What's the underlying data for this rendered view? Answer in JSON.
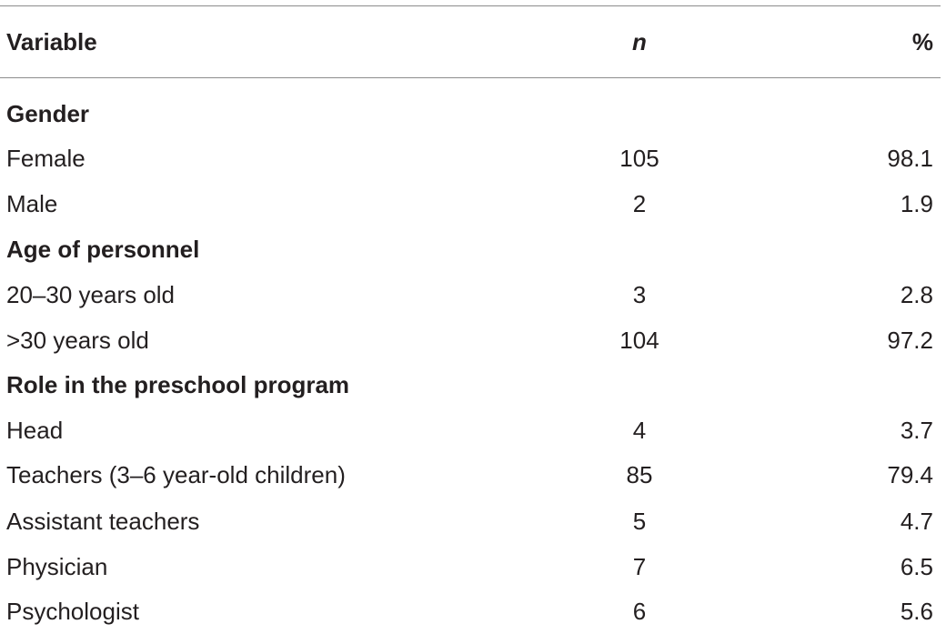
{
  "table": {
    "header": {
      "variable": "Variable",
      "n": "n",
      "percent": "%"
    },
    "sections": [
      {
        "title": "Gender",
        "rows": [
          {
            "label": "Female",
            "n": "105",
            "pct": "98.1"
          },
          {
            "label": "Male",
            "n": "2",
            "pct": "1.9"
          }
        ]
      },
      {
        "title": "Age of personnel",
        "rows": [
          {
            "label": "20–30 years old",
            "n": "3",
            "pct": "2.8"
          },
          {
            "label": ">30 years old",
            "n": "104",
            "pct": "97.2"
          }
        ]
      },
      {
        "title": "Role in the preschool program",
        "rows": [
          {
            "label": "Head",
            "n": "4",
            "pct": "3.7"
          },
          {
            "label": "Teachers (3–6 year-old children)",
            "n": "85",
            "pct": "79.4"
          },
          {
            "label": "Assistant teachers",
            "n": "5",
            "pct": "4.7"
          },
          {
            "label": "Physician",
            "n": "7",
            "pct": "6.5"
          },
          {
            "label": "Psychologist",
            "n": "6",
            "pct": "5.6"
          }
        ]
      }
    ]
  }
}
